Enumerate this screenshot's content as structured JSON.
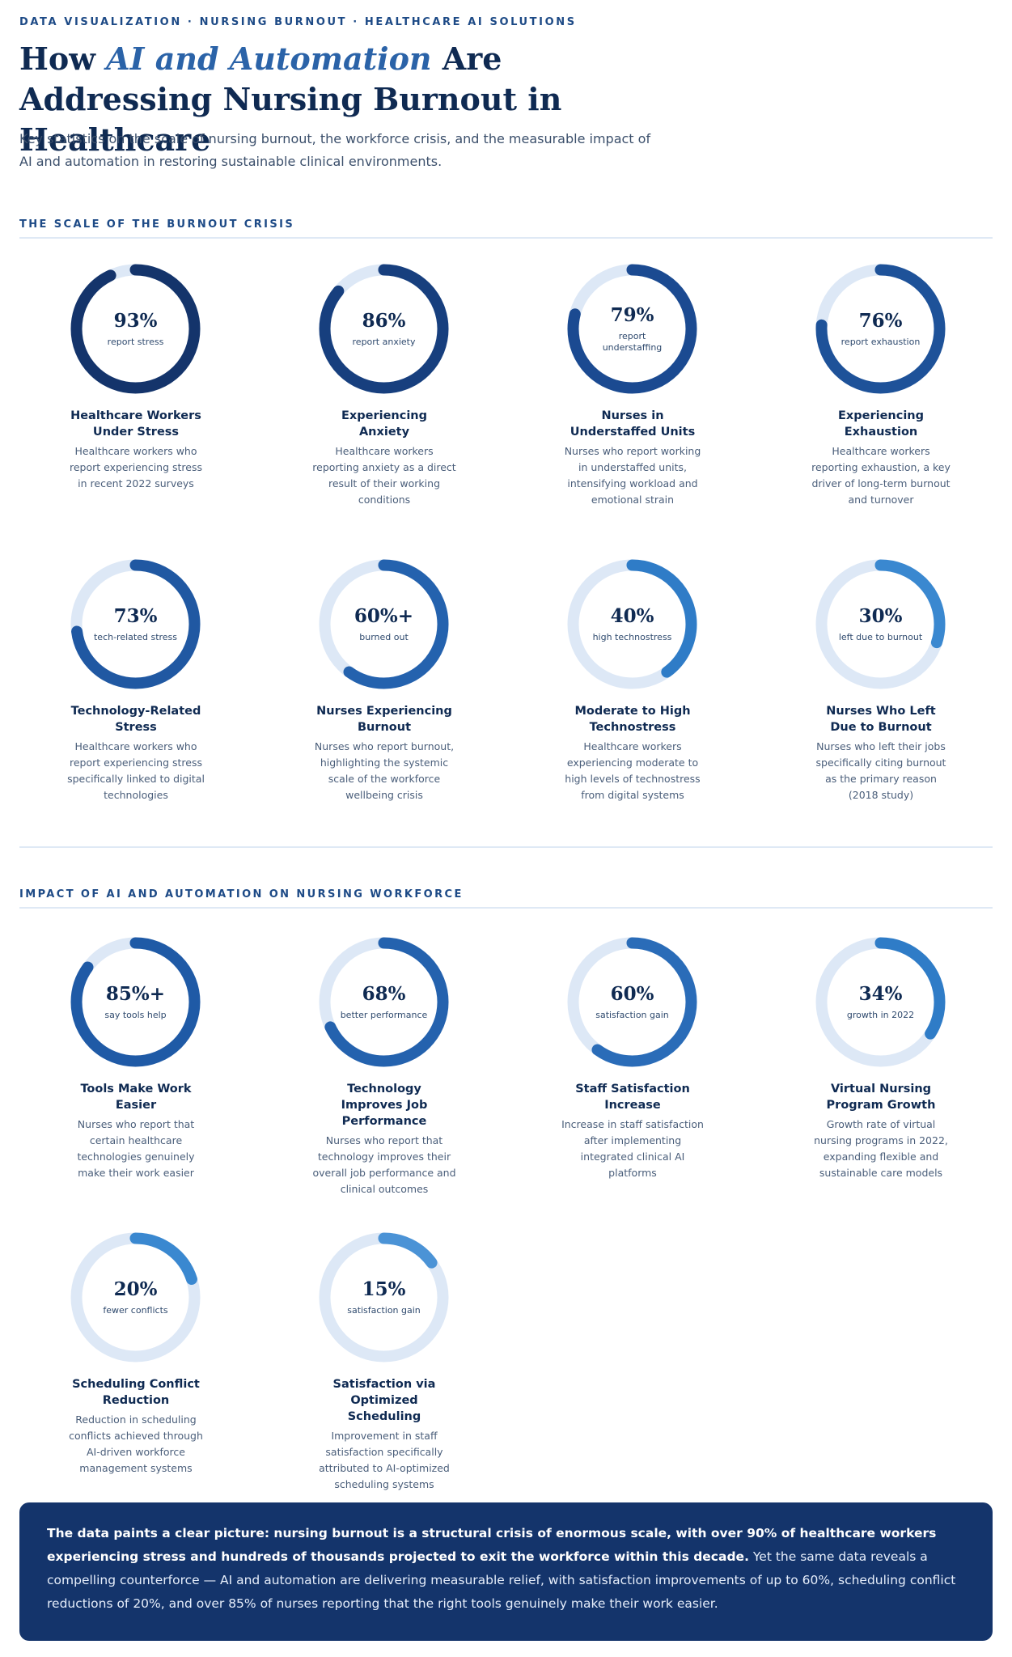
{
  "header": {
    "eyebrow": "DATA VISUALIZATION · NURSING BURNOUT · HEALTHCARE AI SOLUTIONS",
    "title_pre": "How ",
    "title_accent": "AI and Automation",
    "title_post": " Are Addressing Nursing Burnout in Healthcare",
    "subtitle": "Key statistics on the scale of nursing burnout, the workforce crisis, and the measurable impact of AI and automation in restoring sustainable clinical environments."
  },
  "sections": [
    {
      "title": "THE SCALE OF THE BURNOUT CRISIS"
    },
    {
      "title": "IMPACT OF AI AND AUTOMATION ON NURSING WORKFORCE"
    }
  ],
  "colors": {
    "track": "#dde8f6",
    "dark": "#14346b",
    "mid": "#1f5aa6",
    "light": "#2f7cc7",
    "pale": "#4b93d6"
  },
  "chart_data": [
    {
      "type": "donut",
      "title": "THE SCALE OF THE BURNOUT CRISIS",
      "items": [
        {
          "value": 93,
          "display": "93%",
          "label": "report stress",
          "title": "Healthcare Workers Under Stress",
          "desc": "Healthcare workers who report experiencing stress in recent 2022 surveys",
          "color": "#14346b"
        },
        {
          "value": 86,
          "display": "86%",
          "label": "report anxiety",
          "title": "Experiencing Anxiety",
          "desc": "Healthcare workers reporting anxiety as a direct result of their working conditions",
          "color": "#173f7e"
        },
        {
          "value": 79,
          "display": "79%",
          "label": "report understaffing",
          "title": "Nurses in Understaffed Units",
          "desc": "Nurses who report working in understaffed units, intensifying workload and emotional strain",
          "color": "#1b4a91"
        },
        {
          "value": 76,
          "display": "76%",
          "label": "report exhaustion",
          "title": "Experiencing Exhaustion",
          "desc": "Healthcare workers reporting exhaustion, a key driver of long-term burnout and turnover",
          "color": "#1e5299"
        },
        {
          "value": 73,
          "display": "73%",
          "label": "tech-related stress",
          "title": "Technology-Related Stress",
          "desc": "Healthcare workers who report experiencing stress specifically linked to digital technologies",
          "color": "#2058a2"
        },
        {
          "value": 60,
          "display": "60%+",
          "label": "burned out",
          "title": "Nurses Experiencing Burnout",
          "desc": "Nurses who report burnout, highlighting the systemic scale of the workforce wellbeing crisis",
          "color": "#2462ae"
        },
        {
          "value": 40,
          "display": "40%",
          "label": "high technostress",
          "title": "Moderate to High Technostress",
          "desc": "Healthcare workers experiencing moderate to high levels of technostress from digital systems",
          "color": "#2f7cc7"
        },
        {
          "value": 30,
          "display": "30%",
          "label": "left due to burnout",
          "title": "Nurses Who Left Due to Burnout",
          "desc": "Nurses who left their jobs specifically citing burnout as the primary reason (2018 study)",
          "color": "#3a88d0"
        }
      ]
    },
    {
      "type": "donut",
      "title": "IMPACT OF AI AND AUTOMATION ON NURSING WORKFORCE",
      "items": [
        {
          "value": 85,
          "display": "85%+",
          "label": "say tools help",
          "title": "Tools Make Work Easier",
          "desc": "Nurses who report that certain healthcare technologies genuinely make their work easier",
          "color": "#1f5aa6"
        },
        {
          "value": 68,
          "display": "68%",
          "label": "better performance",
          "title": "Technology Improves Job Performance",
          "desc": "Nurses who report that technology improves their overall job performance and clinical outcomes",
          "color": "#2462ae"
        },
        {
          "value": 60,
          "display": "60%",
          "label": "satisfaction gain",
          "title": "Staff Satisfaction Increase",
          "desc": "Increase in staff satisfaction after implementing integrated clinical AI platforms",
          "color": "#2a6cb8"
        },
        {
          "value": 34,
          "display": "34%",
          "label": "growth in 2022",
          "title": "Virtual Nursing Program Growth",
          "desc": "Growth rate of virtual nursing programs in 2022, expanding flexible and sustainable care models",
          "color": "#2f7cc7"
        },
        {
          "value": 20,
          "display": "20%",
          "label": "fewer conflicts",
          "title": "Scheduling Conflict Reduction",
          "desc": "Reduction in scheduling conflicts achieved through AI-driven workforce management systems",
          "color": "#3a88d0"
        },
        {
          "value": 15,
          "display": "15%",
          "label": "satisfaction gain",
          "title": "Satisfaction via Optimized Scheduling",
          "desc": "Improvement in staff satisfaction specifically attributed to AI-optimized scheduling systems",
          "color": "#4b93d6"
        }
      ]
    }
  ],
  "summary": {
    "bold": "The data paints a clear picture: nursing burnout is a structural crisis of enormous scale, with over 90% of healthcare workers experiencing stress and hundreds of thousands projected to exit the workforce within this decade.",
    "rest": " Yet the same data reveals a compelling counterforce — AI and automation are delivering measurable relief, with satisfaction improvements of up to 60%, scheduling conflict reductions of 20%, and over 85% of nurses reporting that the right tools genuinely make their work easier."
  }
}
